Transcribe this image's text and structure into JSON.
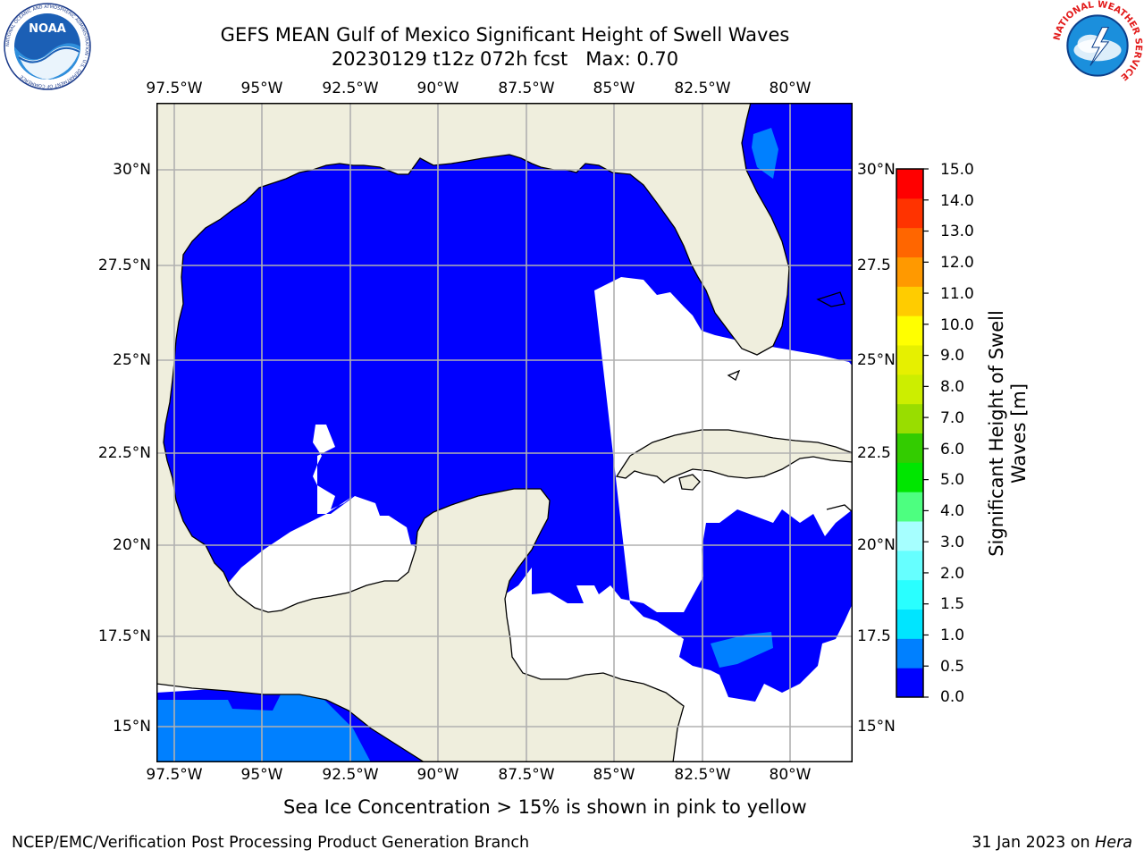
{
  "title": {
    "line1": "GEFS MEAN Gulf of Mexico Significant Height of Swell Waves",
    "line2": "20230129 t12z 072h fcst   Max: 0.70"
  },
  "map": {
    "lon_ticks": [
      "97.5°W",
      "95°W",
      "92.5°W",
      "90°W",
      "87.5°W",
      "85°W",
      "82.5°W",
      "80°W"
    ],
    "lat_ticks_left": [
      "30°N",
      "27.5°N",
      "25°N",
      "22.5°N",
      "20°N",
      "17.5°N",
      "15°N"
    ],
    "lat_ticks_right": [
      "30°N",
      "27.5",
      "25°N",
      "22.5",
      "20°N",
      "17.5",
      "15°N"
    ],
    "land_color": "#efeedd",
    "sea_low_color": "#0000ff",
    "sea_mid_color": "#0080ff",
    "grid_color": "#b0b0b0"
  },
  "colorbar": {
    "label": "Significant Height of Swell Waves [m]",
    "label_line1": "Significant Height of Swell",
    "label_line2": "Waves [m]",
    "ticks": [
      "15.0",
      "14.0",
      "13.0",
      "12.0",
      "11.0",
      "10.0",
      "9.0",
      "8.0",
      "7.0",
      "6.0",
      "5.0",
      "4.0",
      "3.0",
      "2.0",
      "1.5",
      "1.0",
      "0.5",
      "0.0"
    ],
    "colors": [
      "#0000ff",
      "#0080ff",
      "#00e5ff",
      "#29ffff",
      "#66ffff",
      "#a6ffff",
      "#4dff80",
      "#00e600",
      "#33cc00",
      "#99dd00",
      "#ccee00",
      "#e6f000",
      "#ffff00",
      "#ffcc00",
      "#ff9900",
      "#ff6600",
      "#ff3300",
      "#ff0000"
    ]
  },
  "footer": {
    "note": "Sea Ice Concentration > 15% is shown in pink to yellow",
    "credit": "NCEP/EMC/Verification Post Processing Product Generation Branch",
    "date": "31 Jan 2023 on ",
    "host": "Hera"
  },
  "logos": {
    "noaa_text": "NOAA",
    "noaa_ring_text": "NATIONAL OCEANIC AND ATMOSPHERIC ADMINISTRATION · U.S. DEPARTMENT OF COMMERCE",
    "nws_ring_text": "NATIONAL WEATHER SERVICE"
  }
}
